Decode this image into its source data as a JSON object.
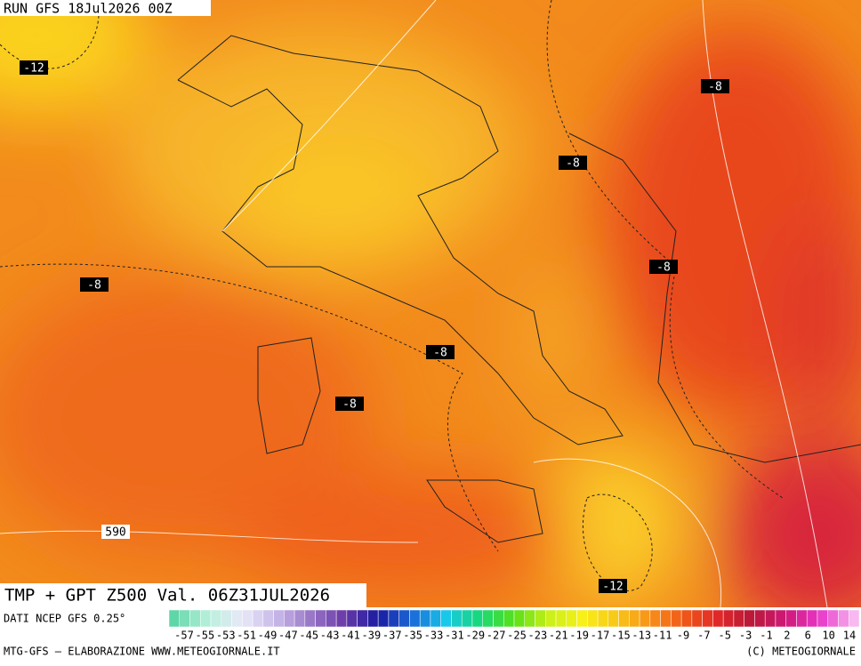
{
  "header": {
    "run": "RUN GFS 18Jul2026 00Z"
  },
  "map": {
    "contour_labels": [
      -12,
      -8,
      -8,
      -8,
      -8,
      -8,
      -8,
      590,
      -12
    ]
  },
  "footer": {
    "title": "TMP + GPT Z500 Val. 06Z31JUL2026",
    "source": "DATI NCEP GFS 0.25°",
    "credit": "MTG-GFS – ELABORAZIONE WWW.METEOGIORNALE.IT",
    "copyright": "(C) METEOGIORNALE"
  },
  "colorbar": {
    "labels": [
      -57,
      -55,
      -53,
      -51,
      -49,
      -47,
      -45,
      -43,
      -41,
      -39,
      -37,
      -35,
      -33,
      -31,
      -29,
      -27,
      -25,
      -23,
      -21,
      -19,
      -17,
      -15,
      -13,
      -11,
      -9,
      -7,
      -5,
      -3,
      -1,
      2,
      6,
      10,
      14
    ]
  }
}
